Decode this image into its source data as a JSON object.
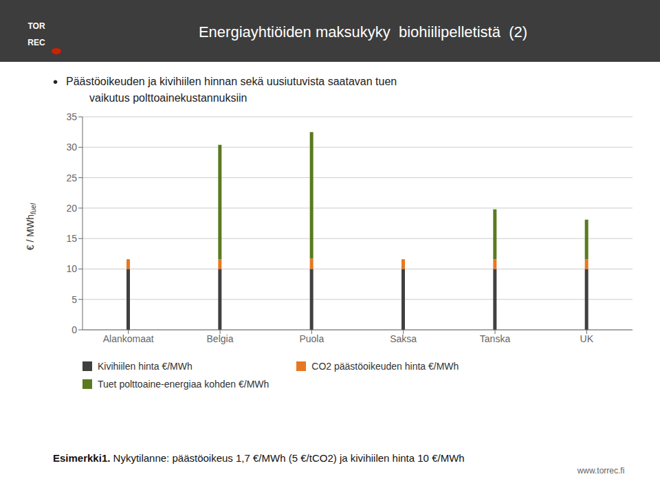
{
  "chart_data": {
    "type": "bar",
    "stacked": true,
    "title": "Energiayhtiöiden maksukyky  biohiilipelletistä  (2)",
    "subtitle": [
      "Päästöoikeuden ja kivihiilen hinnan sekä uusiutuvista saatavan tuen",
      "vaikutus polttoainekustannuksiin"
    ],
    "y_label": "€ / MWh",
    "y_label_subscript": "fuel",
    "annotations": [
      "TOR",
      "REC",
      "•",
      "Esimerkki1.",
      " Nykytilanne: päästöoikeus 1,7 €/MWh (5 €/tCO2) ja kivihiilen hinta 10 €/MWh",
      "www.torrec.fi"
    ],
    "categories": [
      "Alankomaat",
      "Belgia",
      "Puola",
      "Saksa",
      "Tanska",
      "UK"
    ],
    "series": [
      {
        "name": "Kivihiilen hinta €/MWh",
        "color": "#404040",
        "values": [
          10,
          10,
          10,
          10,
          10,
          10
        ]
      },
      {
        "name": "CO2 päästöoikeuden hinta €/MWh",
        "color": "#E87722",
        "values": [
          1.6,
          1.6,
          1.7,
          1.6,
          1.6,
          1.6
        ]
      },
      {
        "name": "Tuet polttoaine-energiaa kohden €/MWh",
        "color": "#5A7A1E",
        "values": [
          0,
          18.8,
          20.8,
          0,
          8.2,
          6.5
        ]
      }
    ],
    "ylim": [
      0,
      35
    ],
    "yticks": [
      0,
      5,
      10,
      15,
      20,
      25,
      30,
      35
    ],
    "grid": true,
    "legend": "bottom"
  }
}
